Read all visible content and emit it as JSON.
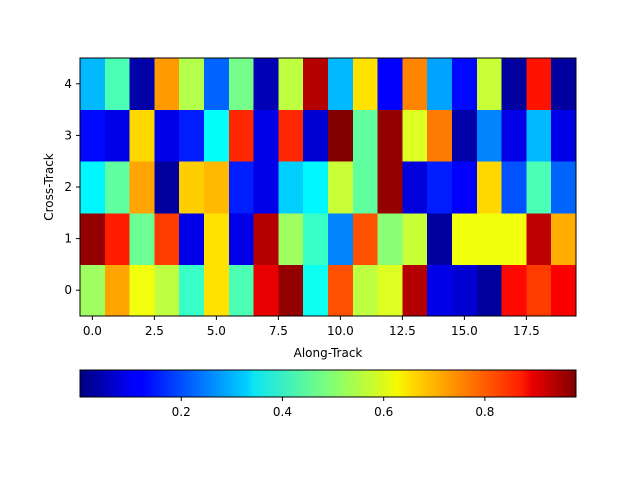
{
  "chart_data": {
    "type": "heatmap",
    "title": "",
    "xlabel": "Along-Track",
    "ylabel": "Cross-Track",
    "colormap": "jet",
    "vmin": 0.0,
    "vmax": 0.98,
    "xlim": [
      -0.5,
      19.5
    ],
    "ylim": [
      -0.5,
      4.5
    ],
    "x_ticks": [
      0.0,
      2.5,
      5.0,
      7.5,
      10.0,
      12.5,
      15.0,
      17.5
    ],
    "x_tick_labels": [
      "0.0",
      "2.5",
      "5.0",
      "7.5",
      "10.0",
      "12.5",
      "15.0",
      "17.5"
    ],
    "y_ticks": [
      0,
      1,
      2,
      3,
      4
    ],
    "y_tick_labels": [
      "0",
      "1",
      "2",
      "3",
      "4"
    ],
    "colorbar": {
      "orientation": "horizontal",
      "ticks": [
        0.2,
        0.4,
        0.6,
        0.8
      ],
      "tick_labels": [
        "0.2",
        "0.4",
        "0.6",
        "0.8"
      ]
    },
    "rows": [
      [
        0.52,
        0.7,
        0.6,
        0.55,
        0.42,
        0.64,
        0.44,
        0.88,
        0.96,
        0.38,
        0.78,
        0.55,
        0.58,
        0.93,
        0.1,
        0.08,
        0.03,
        0.85,
        0.8,
        0.86
      ],
      [
        0.96,
        0.83,
        0.47,
        0.8,
        0.1,
        0.64,
        0.1,
        0.93,
        0.52,
        0.42,
        0.25,
        0.78,
        0.5,
        0.56,
        0.03,
        0.6,
        0.6,
        0.6,
        0.92,
        0.69
      ],
      [
        0.36,
        0.46,
        0.7,
        0.03,
        0.66,
        0.68,
        0.15,
        0.1,
        0.32,
        0.36,
        0.56,
        0.46,
        0.96,
        0.09,
        0.15,
        0.12,
        0.65,
        0.2,
        0.44,
        0.22
      ],
      [
        0.13,
        0.1,
        0.65,
        0.1,
        0.15,
        0.37,
        0.82,
        0.1,
        0.82,
        0.08,
        0.98,
        0.46,
        0.96,
        0.58,
        0.74,
        0.04,
        0.25,
        0.1,
        0.3,
        0.1
      ],
      [
        0.3,
        0.44,
        0.04,
        0.71,
        0.54,
        0.22,
        0.48,
        0.05,
        0.55,
        0.93,
        0.3,
        0.64,
        0.12,
        0.73,
        0.28,
        0.13,
        0.56,
        0.03,
        0.84,
        0.03
      ]
    ]
  }
}
